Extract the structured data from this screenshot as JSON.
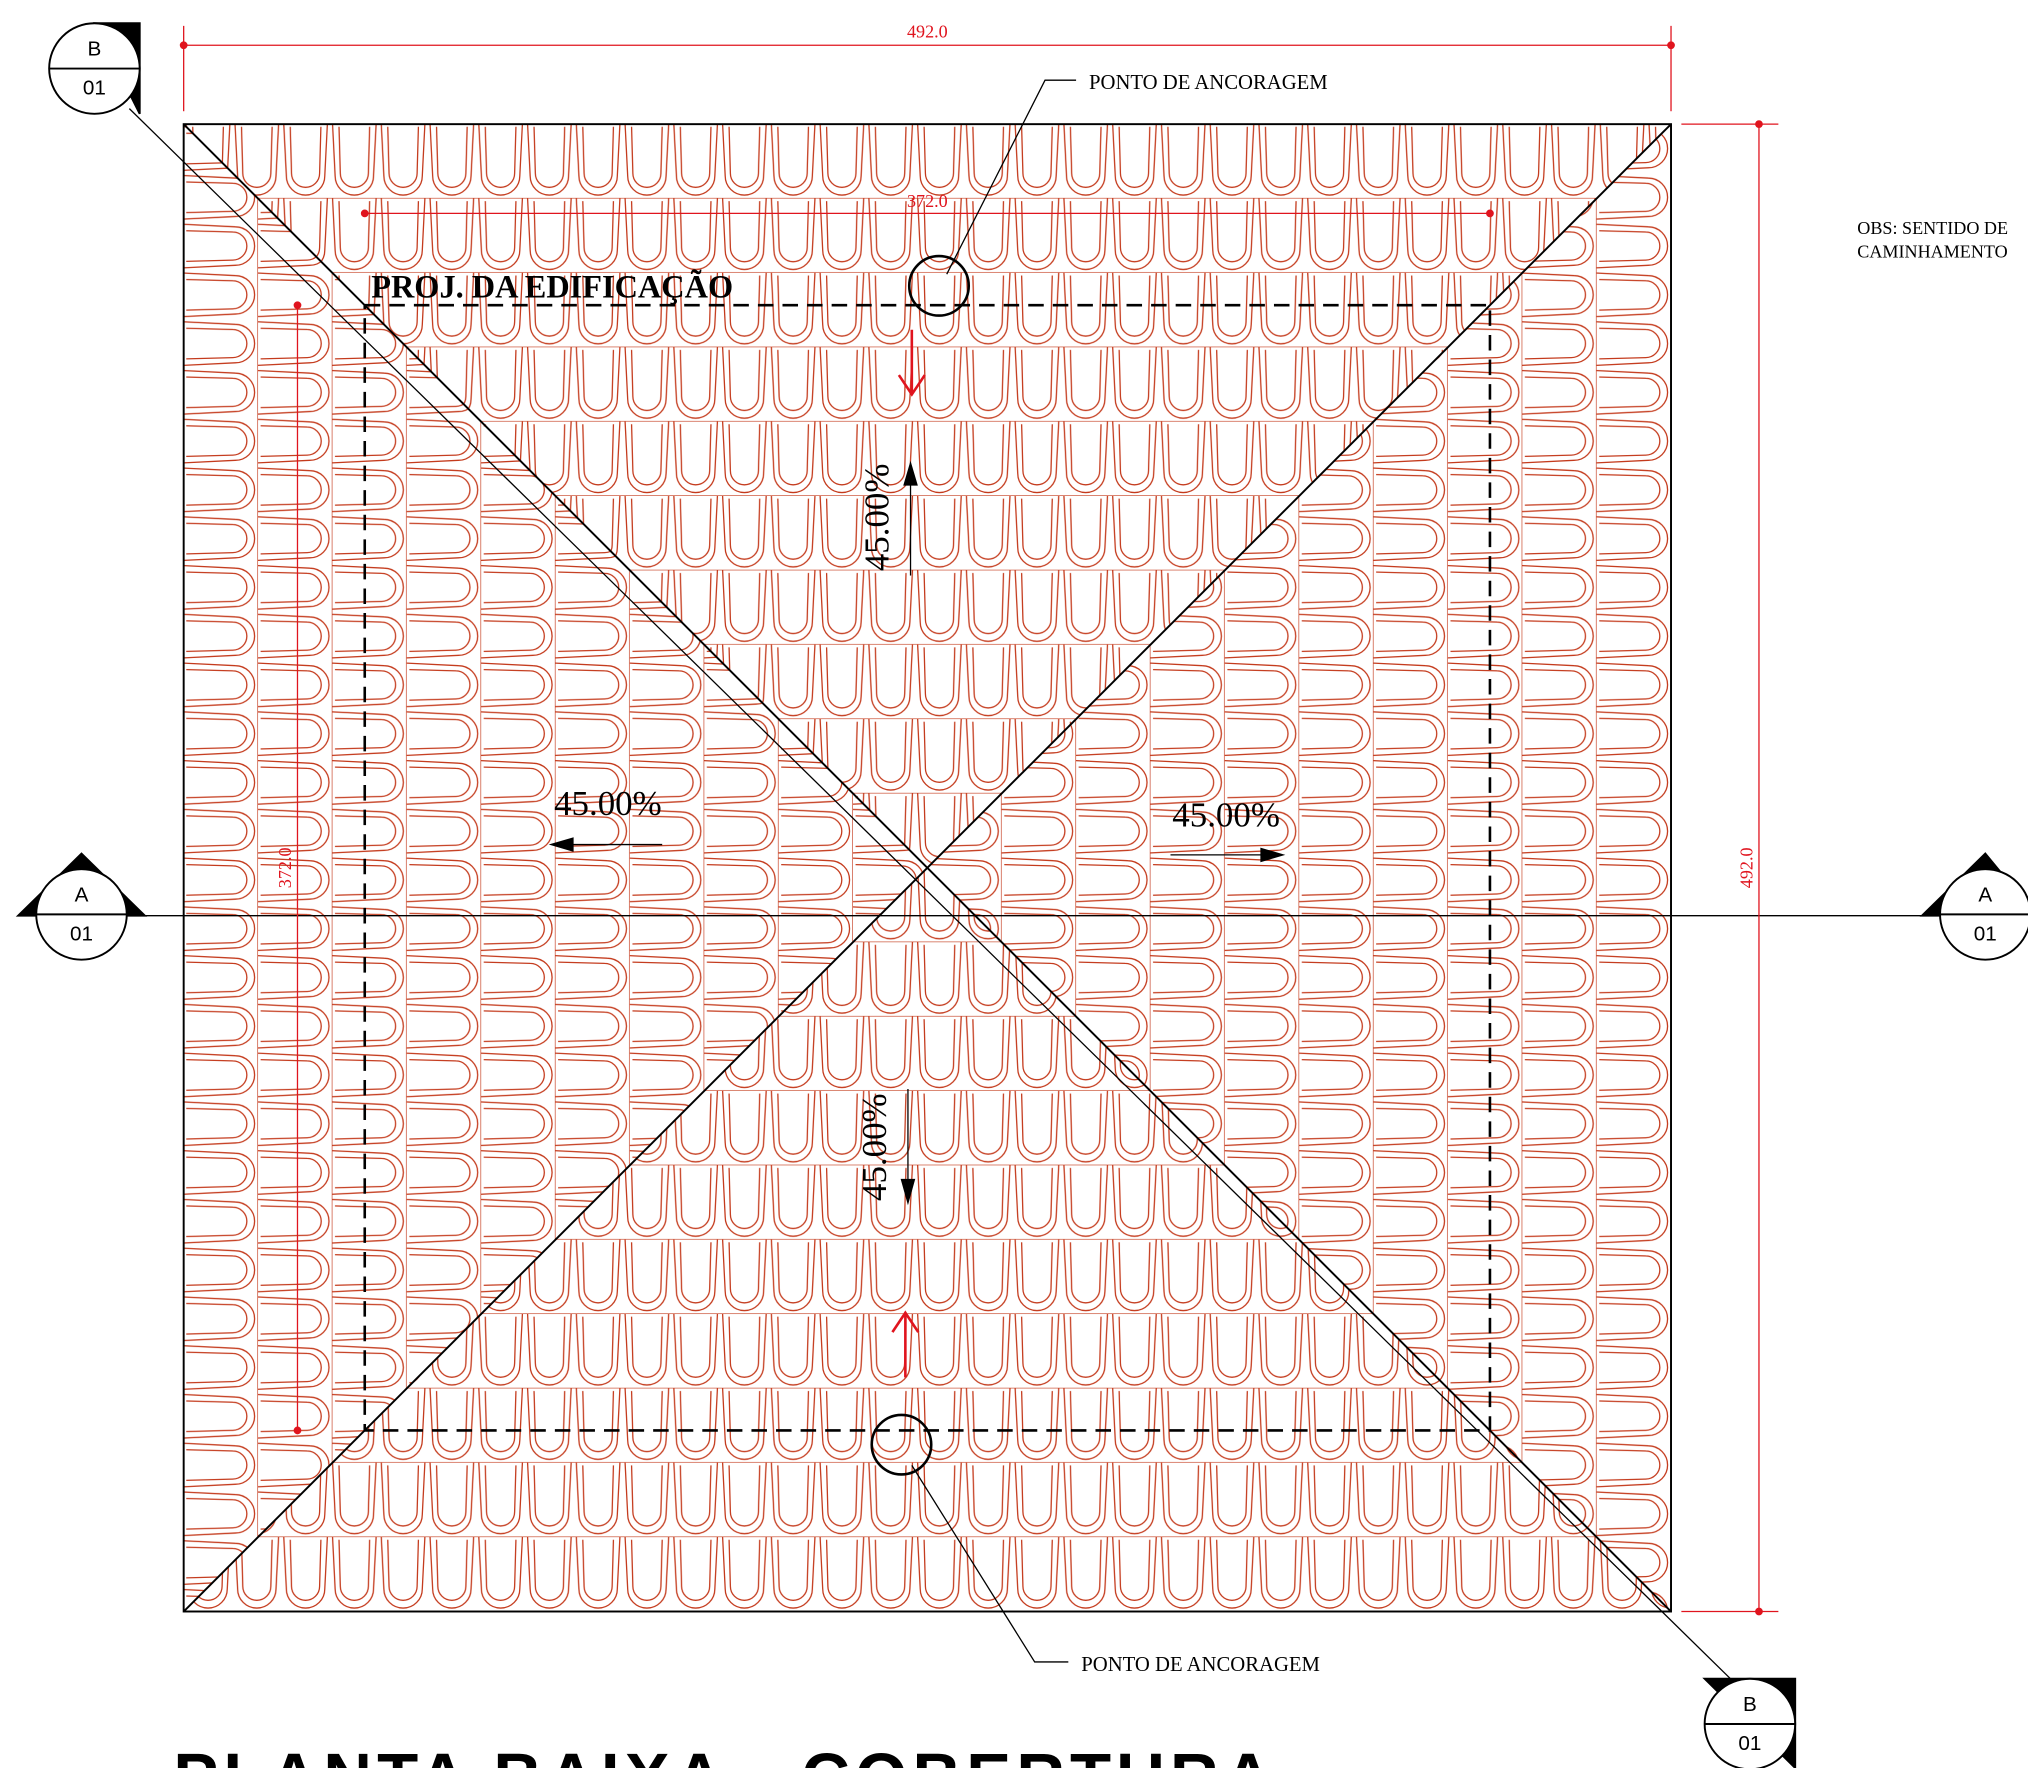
{
  "dimensions": {
    "overall_width": "492.0",
    "overall_height": "492.0",
    "building_width": "372.0",
    "building_height": "372.0"
  },
  "labels": {
    "building_projection": "PROJ. DA EDIFICAÇÃO",
    "anchor_top": "PONTO DE ANCORAGEM",
    "anchor_bottom": "PONTO DE ANCORAGEM",
    "note": [
      "OBS: SENTIDO DE",
      "CAMINHAMENTO"
    ]
  },
  "slopes": [
    "45.00%",
    "45.00%",
    "45.00%",
    "45.00%"
  ],
  "sections": [
    {
      "letter": "B",
      "sheet": "01"
    },
    {
      "letter": "A",
      "sheet": "01"
    },
    {
      "letter": "A",
      "sheet": "01"
    },
    {
      "letter": "B",
      "sheet": "01"
    }
  ],
  "title": "PLANTA BAIXA - COBERTURA"
}
